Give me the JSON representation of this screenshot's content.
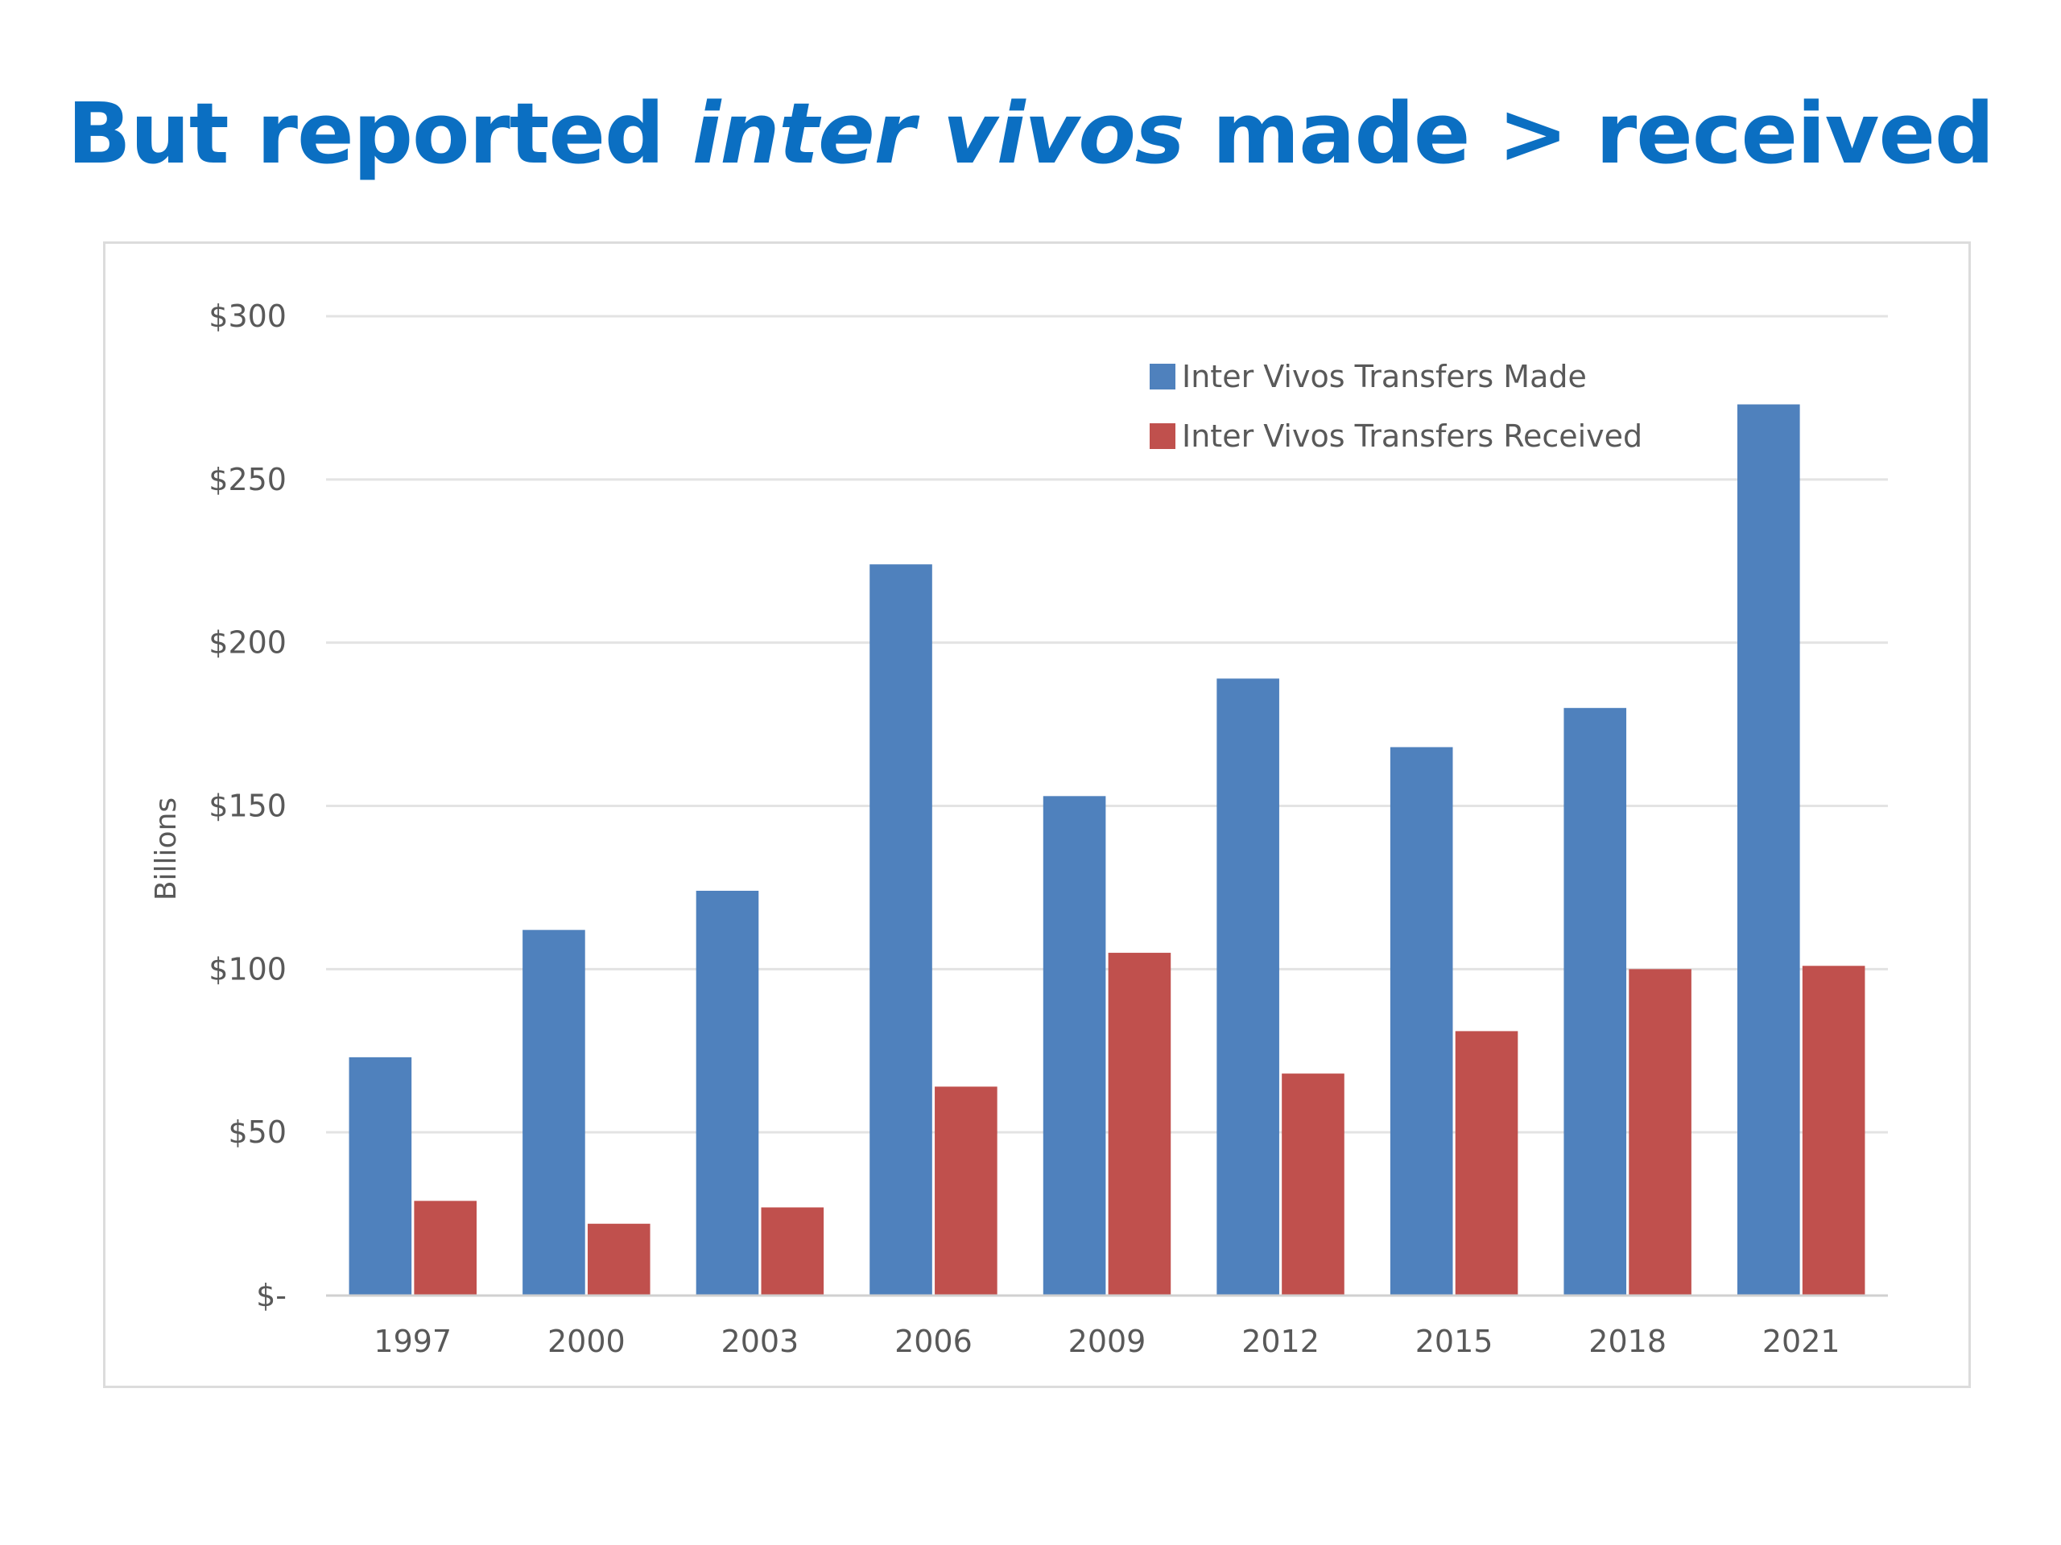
{
  "slide": {
    "title_pre": "But reported ",
    "title_em": "inter vivos",
    "title_post": " made > received"
  },
  "chart_data": {
    "type": "bar",
    "title": "",
    "xlabel": "",
    "ylabel": "Billions",
    "ylim": [
      0,
      300
    ],
    "yticks": [
      0,
      50,
      100,
      150,
      200,
      250,
      300
    ],
    "ytick_labels": [
      "$-",
      "$50",
      "$100",
      "$150",
      "$200",
      "$250",
      "$300"
    ],
    "grid": true,
    "legend_position": "top-right",
    "categories": [
      "1997",
      "2000",
      "2003",
      "2006",
      "2009",
      "2012",
      "2015",
      "2018",
      "2021"
    ],
    "series": [
      {
        "name": "Inter Vivos Transfers Made",
        "color": "#4f81bd",
        "values": [
          73,
          112,
          124,
          224,
          153,
          189,
          168,
          180,
          273
        ]
      },
      {
        "name": "Inter Vivos Transfers Received",
        "color": "#c0504d",
        "values": [
          29,
          22,
          27,
          64,
          105,
          68,
          81,
          100,
          101
        ]
      }
    ]
  }
}
